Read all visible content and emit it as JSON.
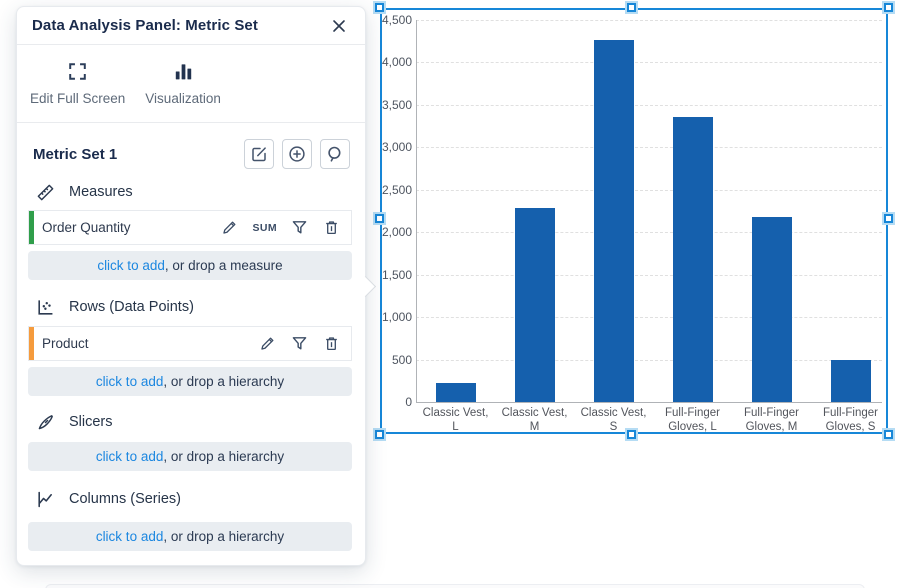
{
  "panel": {
    "title": "Data Analysis Panel: Metric Set",
    "toolbar": [
      {
        "label": "Edit Full Screen",
        "icon": "fullscreen-icon"
      },
      {
        "label": "Visualization",
        "icon": "bar-chart-icon"
      }
    ],
    "metric_set": {
      "title": "Metric Set 1",
      "buttons": [
        "edit",
        "add",
        "search"
      ]
    },
    "sections": [
      {
        "label": "Measures",
        "icon": "ruler-icon",
        "items": [
          {
            "label": "Order Quantity",
            "aggregator": "SUM",
            "accent_color": "#2f9e4a",
            "actions": [
              "edit",
              "filter",
              "delete"
            ]
          }
        ],
        "add_link": "click to add",
        "add_rest": ", or drop a measure"
      },
      {
        "label": "Rows (Data Points)",
        "icon": "scatter-plot-icon",
        "items": [
          {
            "label": "Product",
            "accent_color": "#f59b3d",
            "actions": [
              "edit",
              "filter",
              "delete"
            ]
          }
        ],
        "add_link": "click to add",
        "add_rest": ", or drop a hierarchy"
      },
      {
        "label": "Slicers",
        "icon": "knife-icon",
        "items": [],
        "add_link": "click to add",
        "add_rest": ", or drop a hierarchy"
      },
      {
        "label": "Columns (Series)",
        "icon": "line-chart-icon",
        "items": [],
        "add_link": "click to add",
        "add_rest": ", or drop a hierarchy"
      }
    ]
  },
  "chart_data": {
    "type": "bar",
    "title": "",
    "series_name": "Order Quantity",
    "categories": [
      "Classic Vest, L",
      "Classic Vest, M",
      "Classic Vest, S",
      "Full-Finger Gloves, L",
      "Full-Finger Gloves, M",
      "Full-Finger Gloves, S"
    ],
    "categories_lines": [
      [
        "Classic Vest,",
        "L"
      ],
      [
        "Classic Vest,",
        "M"
      ],
      [
        "Classic Vest,",
        "S"
      ],
      [
        "Full-Finger",
        "Gloves, L"
      ],
      [
        "Full-Finger",
        "Gloves, M"
      ],
      [
        "Full-Finger",
        "Gloves, S"
      ]
    ],
    "values": [
      220,
      2280,
      4270,
      3360,
      2180,
      490
    ],
    "ylim": [
      0,
      4500
    ],
    "ytick_step": 500,
    "ytick_labels": [
      "0",
      "500",
      "1,000",
      "1,500",
      "2,000",
      "2,500",
      "3,000",
      "3,500",
      "4,000",
      "4,500"
    ],
    "grid": "horizontal-dashed",
    "legend": "none",
    "bar_color": "#1560ad",
    "selected": true
  },
  "colors": {
    "bar": "#1560ad",
    "selection_outline": "#1787d8",
    "measure_accent": "#2f9e4a",
    "row_accent": "#f59b3d",
    "link": "#1c87e0",
    "panel_title_text": "#1a2b4c",
    "add_bar_background": "#e9edf1"
  }
}
